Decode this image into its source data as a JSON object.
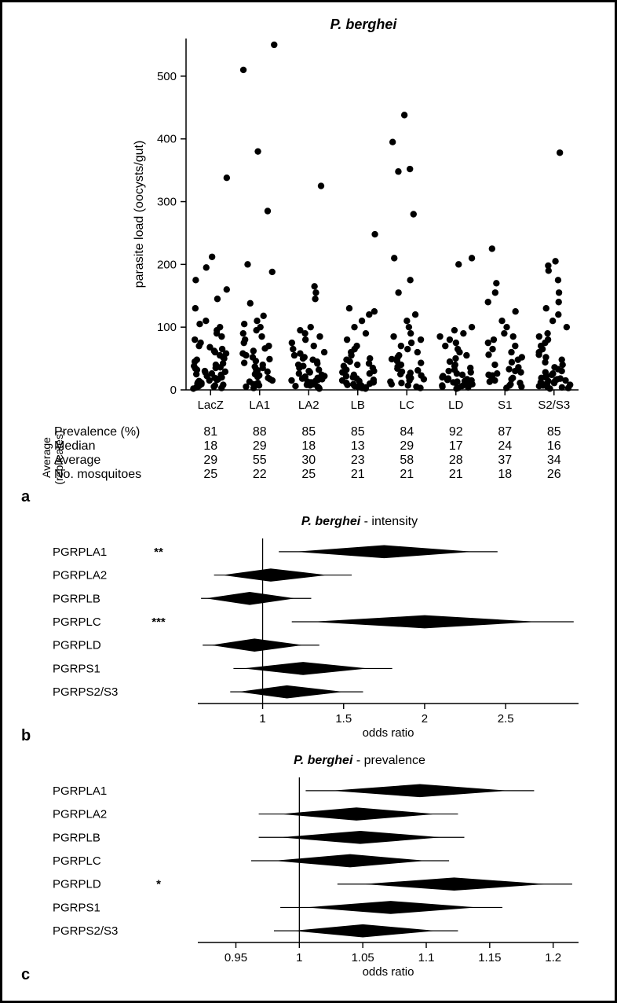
{
  "figure": {
    "border_color": "#000000",
    "background": "#ffffff",
    "font_family": "Arial"
  },
  "panel_a": {
    "label": "a",
    "type": "scatter-strip",
    "title": "P. berghei",
    "title_fontsize": 18,
    "title_fontstyle": "italic",
    "title_fontweight": "bold",
    "ylabel": "parasite load (oocysts/gut)",
    "ylabel_fontsize": 16,
    "ylim": [
      0,
      560
    ],
    "yticks": [
      0,
      100,
      200,
      300,
      400,
      500
    ],
    "xlim": [
      0.4,
      8.6
    ],
    "categories": [
      "LacZ",
      "LA1",
      "LA2",
      "LB",
      "LC",
      "LD",
      "S1",
      "S2/S3"
    ],
    "category_fontsize": 15,
    "marker_color": "#000000",
    "marker_radius": 4.2,
    "axis_color": "#000000",
    "axis_width": 1.5,
    "jitter_width": 0.35,
    "series": {
      "LacZ": [
        2,
        3,
        4,
        5,
        6,
        7,
        8,
        9,
        10,
        11,
        12,
        13,
        14,
        15,
        16,
        17,
        18,
        19,
        20,
        22,
        24,
        25,
        26,
        28,
        29,
        30,
        32,
        34,
        35,
        36,
        38,
        40,
        42,
        45,
        48,
        50,
        52,
        55,
        58,
        60,
        62,
        65,
        68,
        70,
        75,
        80,
        85,
        90,
        95,
        100,
        105,
        110,
        130,
        145,
        160,
        175,
        195,
        212,
        338
      ],
      "LA1": [
        3,
        5,
        7,
        9,
        11,
        13,
        15,
        17,
        19,
        21,
        23,
        25,
        27,
        29,
        31,
        33,
        35,
        37,
        40,
        43,
        46,
        49,
        52,
        55,
        58,
        62,
        66,
        70,
        75,
        80,
        85,
        90,
        95,
        100,
        105,
        110,
        118,
        138,
        188,
        200,
        285,
        380,
        510,
        550
      ],
      "LA2": [
        2,
        3,
        4,
        5,
        6,
        7,
        8,
        9,
        10,
        11,
        12,
        13,
        14,
        15,
        16,
        17,
        18,
        19,
        20,
        21,
        22,
        24,
        26,
        28,
        30,
        32,
        35,
        38,
        40,
        42,
        45,
        48,
        50,
        52,
        55,
        58,
        60,
        65,
        70,
        75,
        80,
        85,
        90,
        95,
        100,
        145,
        155,
        165,
        325
      ],
      "LB": [
        2,
        3,
        4,
        5,
        6,
        7,
        8,
        9,
        10,
        11,
        12,
        13,
        14,
        15,
        16,
        18,
        20,
        22,
        24,
        26,
        28,
        30,
        32,
        35,
        38,
        40,
        42,
        45,
        48,
        50,
        55,
        60,
        65,
        70,
        80,
        90,
        100,
        110,
        120,
        125,
        130,
        248
      ],
      "LC": [
        3,
        5,
        7,
        9,
        11,
        13,
        15,
        17,
        19,
        21,
        23,
        25,
        27,
        29,
        31,
        34,
        37,
        40,
        43,
        46,
        49,
        52,
        55,
        60,
        65,
        70,
        75,
        80,
        85,
        90,
        100,
        110,
        120,
        155,
        175,
        210,
        280,
        348,
        352,
        395,
        438
      ],
      "LD": [
        2,
        3,
        4,
        5,
        6,
        7,
        8,
        9,
        10,
        11,
        12,
        13,
        14,
        15,
        16,
        17,
        18,
        20,
        22,
        24,
        26,
        28,
        30,
        32,
        35,
        38,
        40,
        45,
        50,
        55,
        60,
        65,
        70,
        75,
        80,
        85,
        90,
        95,
        100,
        200,
        210
      ],
      "S1": [
        3,
        5,
        7,
        9,
        11,
        13,
        15,
        17,
        19,
        21,
        23,
        24,
        26,
        28,
        30,
        33,
        36,
        40,
        44,
        48,
        52,
        56,
        60,
        65,
        70,
        75,
        80,
        85,
        90,
        100,
        110,
        125,
        140,
        155,
        170,
        225
      ],
      "S2/S3": [
        2,
        3,
        4,
        5,
        6,
        7,
        8,
        9,
        10,
        11,
        12,
        13,
        14,
        15,
        16,
        17,
        18,
        19,
        20,
        22,
        24,
        26,
        28,
        30,
        33,
        36,
        40,
        44,
        48,
        52,
        56,
        60,
        65,
        70,
        75,
        80,
        85,
        90,
        100,
        110,
        120,
        130,
        140,
        155,
        175,
        190,
        198,
        205,
        378
      ]
    },
    "stats_table": {
      "side_label_top": "Average",
      "side_label_bottom": "(replicates)",
      "side_label_fontsize": 14,
      "rows": [
        {
          "label": "Prevalence (%)",
          "values": [
            81,
            88,
            85,
            85,
            84,
            92,
            87,
            85
          ]
        },
        {
          "label": "Median",
          "values": [
            18,
            29,
            18,
            13,
            29,
            17,
            24,
            16
          ]
        },
        {
          "label": "Average",
          "values": [
            29,
            55,
            30,
            23,
            58,
            28,
            37,
            34
          ]
        },
        {
          "label": "No. mosquitoes",
          "values": [
            25,
            22,
            25,
            21,
            21,
            21,
            18,
            26
          ]
        }
      ],
      "label_fontsize": 16,
      "value_fontsize": 16
    }
  },
  "panel_b": {
    "label": "b",
    "type": "forest-diamond",
    "title": "P. berghei - intensity",
    "title_italic_part": "P. berghei",
    "title_plain_part": " - intensity",
    "title_fontsize": 16,
    "xlabel": "odds ratio",
    "xlabel_fontsize": 15,
    "xlim": [
      0.6,
      2.95
    ],
    "xticks": [
      1,
      1.5,
      2,
      2.5
    ],
    "reference_x": 1,
    "reference_color": "#000000",
    "reference_width": 1.3,
    "categories": [
      "PGRPLA1",
      "PGRPLA2",
      "PGRPLB",
      "PGRPLC",
      "PGRPLD",
      "PGRPS1",
      "PGRPS2/S3"
    ],
    "category_fontsize": 15,
    "significance": {
      "PGRPLA1": "**",
      "PGRPLC": "***"
    },
    "diamond_color": "#000000",
    "whisker_color": "#000000",
    "whisker_width": 1.2,
    "diamond_half_height": 0.28,
    "rows": [
      {
        "name": "PGRPLA1",
        "center": 1.75,
        "diamond_lo": 1.2,
        "diamond_hi": 2.3,
        "whisker_lo": 1.1,
        "whisker_hi": 2.45
      },
      {
        "name": "PGRPLA2",
        "center": 1.05,
        "diamond_lo": 0.75,
        "diamond_hi": 1.4,
        "whisker_lo": 0.7,
        "whisker_hi": 1.55
      },
      {
        "name": "PGRPLB",
        "center": 0.92,
        "diamond_lo": 0.65,
        "diamond_hi": 1.2,
        "whisker_lo": 0.62,
        "whisker_hi": 1.3
      },
      {
        "name": "PGRPLC",
        "center": 2.0,
        "diamond_lo": 1.3,
        "diamond_hi": 2.7,
        "whisker_lo": 1.18,
        "whisker_hi": 2.92
      },
      {
        "name": "PGRPLD",
        "center": 0.95,
        "diamond_lo": 0.68,
        "diamond_hi": 1.25,
        "whisker_lo": 0.63,
        "whisker_hi": 1.35
      },
      {
        "name": "PGRPS1",
        "center": 1.25,
        "diamond_lo": 0.88,
        "diamond_hi": 1.65,
        "whisker_lo": 0.82,
        "whisker_hi": 1.8
      },
      {
        "name": "PGRPS2/S3",
        "center": 1.15,
        "diamond_lo": 0.85,
        "diamond_hi": 1.5,
        "whisker_lo": 0.8,
        "whisker_hi": 1.62
      }
    ]
  },
  "panel_c": {
    "label": "c",
    "type": "forest-diamond",
    "title": "P. berghei - prevalence",
    "title_italic_part": "P. berghei",
    "title_plain_part": " - prevalence",
    "title_fontsize": 16,
    "xlabel": "odds ratio",
    "xlabel_fontsize": 15,
    "xlim": [
      0.92,
      1.22
    ],
    "xticks": [
      0.95,
      1,
      1.05,
      1.1,
      1.15,
      1.2
    ],
    "reference_x": 1,
    "reference_color": "#000000",
    "reference_width": 1.3,
    "categories": [
      "PGRPLA1",
      "PGRPLA2",
      "PGRPLB",
      "PGRPLC",
      "PGRPLD",
      "PGRPS1",
      "PGRPS2/S3"
    ],
    "category_fontsize": 15,
    "significance": {
      "PGRPLD": "*"
    },
    "diamond_color": "#000000",
    "whisker_color": "#000000",
    "whisker_width": 1.2,
    "diamond_half_height": 0.28,
    "rows": [
      {
        "name": "PGRPLA1",
        "center": 1.095,
        "diamond_lo": 1.025,
        "diamond_hi": 1.165,
        "whisker_lo": 1.005,
        "whisker_hi": 1.185
      },
      {
        "name": "PGRPLA2",
        "center": 1.045,
        "diamond_lo": 0.985,
        "diamond_hi": 1.108,
        "whisker_lo": 0.968,
        "whisker_hi": 1.125
      },
      {
        "name": "PGRPLB",
        "center": 1.048,
        "diamond_lo": 0.985,
        "diamond_hi": 1.112,
        "whisker_lo": 0.968,
        "whisker_hi": 1.13
      },
      {
        "name": "PGRPLC",
        "center": 1.04,
        "diamond_lo": 0.98,
        "diamond_hi": 1.1,
        "whisker_lo": 0.962,
        "whisker_hi": 1.118
      },
      {
        "name": "PGRPLD",
        "center": 1.122,
        "diamond_lo": 1.05,
        "diamond_hi": 1.195,
        "whisker_lo": 1.03,
        "whisker_hi": 1.215
      },
      {
        "name": "PGRPS1",
        "center": 1.072,
        "diamond_lo": 1.005,
        "diamond_hi": 1.14,
        "whisker_lo": 0.985,
        "whisker_hi": 1.16
      },
      {
        "name": "PGRPS2/S3",
        "center": 1.05,
        "diamond_lo": 0.995,
        "diamond_hi": 1.108,
        "whisker_lo": 0.98,
        "whisker_hi": 1.125
      }
    ]
  }
}
